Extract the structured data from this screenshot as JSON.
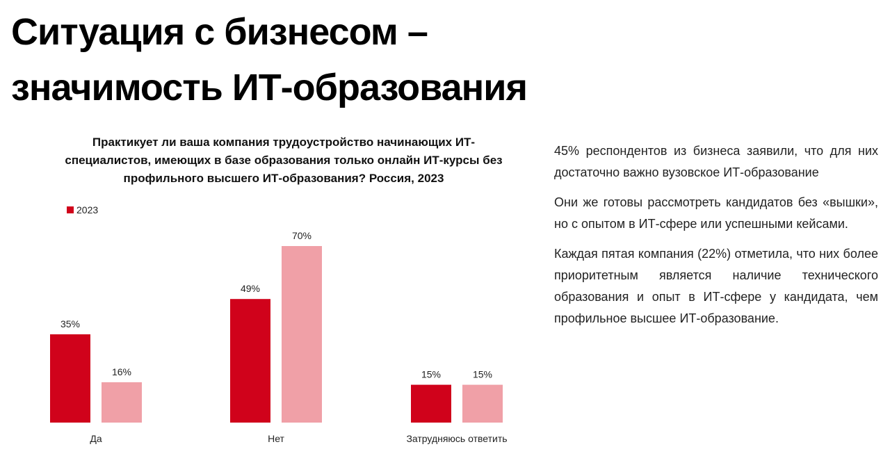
{
  "page": {
    "title_line1": "Ситуация с бизнесом –",
    "title_line2": "значимость ИТ-образования"
  },
  "colors": {
    "series_2023": "#d0021b",
    "series_2": "#f0a0a7"
  },
  "chart_data": {
    "type": "bar",
    "title": "Практикует ли ваша компания трудоустройство начинающих ИТ-специалистов, имеющих в базе образования только онлайн ИТ-курсы без профильного высшего ИТ-образования? Россия, 2023",
    "categories": [
      "Да",
      "Нет",
      "Затрудняюсь ответить"
    ],
    "series": [
      {
        "name": "2023",
        "values": [
          35,
          49,
          15
        ],
        "labels": [
          "35%",
          "49%",
          "15%"
        ]
      },
      {
        "values": [
          16,
          70,
          15
        ],
        "labels": [
          "16%",
          "70%",
          "15%"
        ]
      }
    ],
    "unit": "%",
    "ylim": [
      0,
      70
    ],
    "legend_position": "top-left",
    "grid": false
  },
  "side_text": {
    "p1": "45% респондентов из бизнеса заявили, что для них достаточно важно вузовское ИТ-образование",
    "p2": "Они же готовы рассмотреть кандидатов без «вышки», но с опытом в ИТ-сфере или успешными кейсами.",
    "p3": "Каждая пятая компания (22%) отметила, что них более приоритетным является наличие технического образования и опыт в ИТ-сфере у кандидата, чем профильное высшее ИТ-образование."
  }
}
